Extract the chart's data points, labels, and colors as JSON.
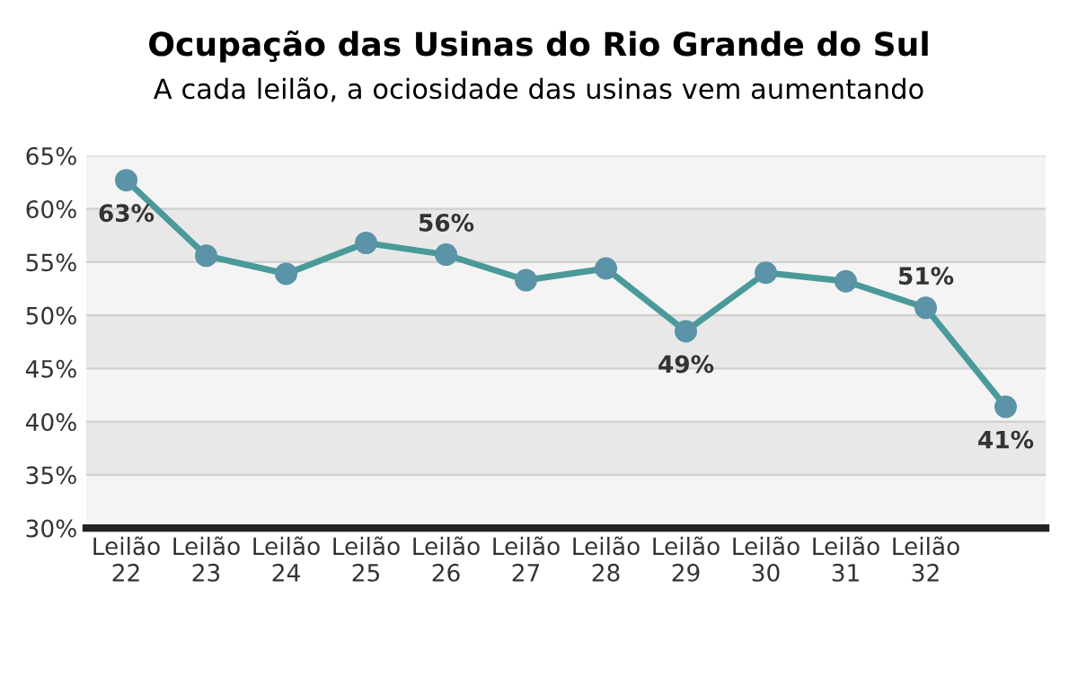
{
  "chart_data": {
    "type": "line",
    "title": "Ocupação das Usinas do Rio Grande do Sul",
    "subtitle": "A cada leilão, a ociosidade das usinas vem aumentando",
    "categories": [
      "Leilão\n22",
      "Leilão\n23",
      "Leilão\n24",
      "Leilão\n25",
      "Leilão\n26",
      "Leilão\n27",
      "Leilão\n28",
      "Leilão\n29",
      "Leilão\n30",
      "Leilão\n31",
      "Leilão\n32",
      null
    ],
    "series": [
      {
        "color": "#4a9a9a",
        "values": [
          62.7,
          55.6,
          53.9,
          56.8,
          55.7,
          53.3,
          54.4,
          48.5,
          54.0,
          53.2,
          50.7,
          41.4
        ],
        "value_labels": [
          "63%",
          null,
          null,
          null,
          "56%",
          null,
          null,
          "49%",
          null,
          null,
          "51%",
          "41%"
        ]
      }
    ],
    "ylim": [
      30,
      65
    ],
    "yticks": [
      {
        "value": 30,
        "label": "30%"
      },
      {
        "value": 35,
        "label": "35%"
      },
      {
        "value": 40,
        "label": "40%"
      },
      {
        "value": 45,
        "label": "45%"
      },
      {
        "value": 50,
        "label": "50%"
      },
      {
        "value": 55,
        "label": "55%"
      },
      {
        "value": 60,
        "label": "60%"
      },
      {
        "value": 65,
        "label": "65%"
      }
    ],
    "grid": "y",
    "marker": "circle",
    "line_style": "solid"
  }
}
